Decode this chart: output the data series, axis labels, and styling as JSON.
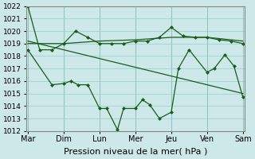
{
  "background_color": "#cce8e8",
  "grid_color": "#99cccc",
  "line_color": "#1a5c1a",
  "xlabel": "Pression niveau de la mer( hPa )",
  "xlabel_fontsize": 8,
  "ylim": [
    1012,
    1022
  ],
  "yticks": [
    1012,
    1013,
    1014,
    1015,
    1016,
    1017,
    1018,
    1019,
    1020,
    1021,
    1022
  ],
  "xtick_labels": [
    "Mar",
    "Dim",
    "Lun",
    "Mer",
    "Jeu",
    "Ven",
    "Sam"
  ],
  "xtick_positions": [
    0,
    1,
    2,
    3,
    4,
    5,
    6
  ],
  "line1_x": [
    0,
    0.33,
    0.67,
    1.0,
    1.33,
    1.67,
    2.0,
    2.33,
    2.67,
    3.0,
    3.33,
    3.67,
    4.0,
    4.33,
    4.67,
    5.0,
    5.33,
    5.67,
    6.0
  ],
  "line1_y": [
    1022,
    1018.5,
    1018.5,
    1019,
    1020,
    1019.5,
    1019,
    1019,
    1019,
    1019.2,
    1019.2,
    1019.5,
    1020.3,
    1019.6,
    1019.5,
    1019.5,
    1019.3,
    1019.2,
    1019.0
  ],
  "line2_x": [
    0,
    1.0,
    2.0,
    3.0,
    4.0,
    5.0,
    6.0
  ],
  "line2_y": [
    1019.0,
    1019.0,
    1019.2,
    1019.3,
    1019.5,
    1019.5,
    1019.2
  ],
  "line3_x": [
    0,
    6.0
  ],
  "line3_y": [
    1019.2,
    1015.0
  ],
  "line4_x": [
    0,
    0.67,
    1.0,
    1.2,
    1.4,
    1.67,
    2.0,
    2.2,
    2.5,
    2.67,
    3.0,
    3.2,
    3.4,
    3.67,
    4.0,
    4.2,
    4.5,
    5.0,
    5.2,
    5.5,
    5.75,
    6.0
  ],
  "line4_y": [
    1018.5,
    1015.7,
    1015.8,
    1016.0,
    1015.7,
    1015.7,
    1013.8,
    1013.8,
    1012.1,
    1013.8,
    1013.8,
    1014.5,
    1014.1,
    1013.0,
    1013.5,
    1017.0,
    1018.5,
    1016.7,
    1017.0,
    1018.1,
    1017.2,
    1014.7
  ]
}
